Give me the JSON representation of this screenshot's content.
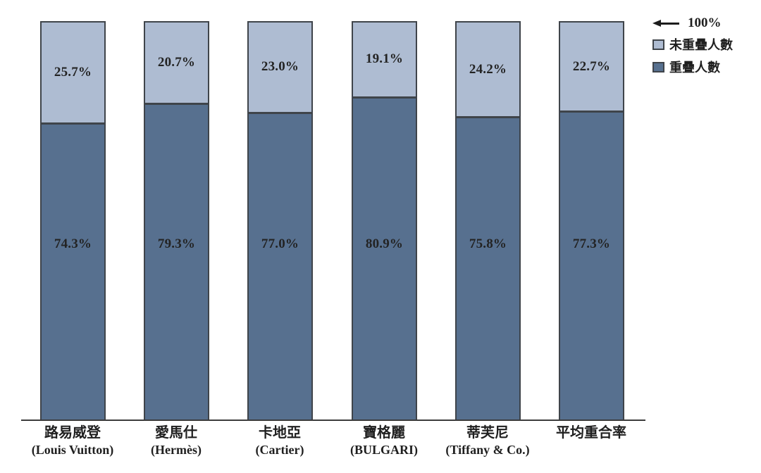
{
  "chart_data": {
    "type": "bar",
    "stacked": true,
    "orientation": "vertical",
    "ylim": [
      0,
      100
    ],
    "grid": false,
    "legend_position": "top-right",
    "axis_marker_label": "100%",
    "categories": [
      {
        "label": "路易威登",
        "sublabel": "(Louis Vuitton)"
      },
      {
        "label": "愛馬仕",
        "sublabel": "(Hermès)"
      },
      {
        "label": "卡地亞",
        "sublabel": "(Cartier)"
      },
      {
        "label": "寶格麗",
        "sublabel": "(BULGARI)"
      },
      {
        "label": "蒂芙尼",
        "sublabel": "(Tiffany & Co.)"
      },
      {
        "label": "平均重合率",
        "sublabel": ""
      }
    ],
    "series": [
      {
        "name": "未重疊人數",
        "position": "top",
        "color": "#aebcd2",
        "values": [
          25.7,
          20.7,
          23.0,
          19.1,
          24.2,
          22.7
        ]
      },
      {
        "name": "重疊人數",
        "position": "bottom",
        "color": "#57708f",
        "values": [
          74.3,
          79.3,
          77.0,
          80.9,
          75.8,
          77.3
        ]
      }
    ],
    "value_suffix": "%"
  },
  "legend": {
    "marker_label": "100%",
    "items": [
      {
        "label": "未重疊人數",
        "color": "#aebcd2"
      },
      {
        "label": "重疊人數",
        "color": "#57708f"
      }
    ]
  },
  "colors": {
    "bar_border": "#3f444a",
    "axis_line": "#3c3c3c",
    "text": "#232323",
    "background": "#ffffff"
  }
}
